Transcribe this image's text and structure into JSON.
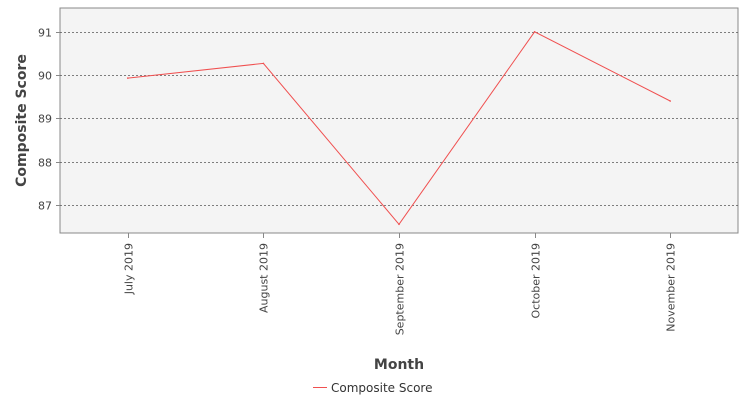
{
  "chart_data": {
    "type": "line",
    "title": "",
    "xlabel": "Month",
    "ylabel": "Composite Score",
    "categories": [
      "July 2019",
      "August 2019",
      "September 2019",
      "October 2019",
      "November 2019"
    ],
    "series": [
      {
        "name": "Composite Score",
        "values": [
          89.93,
          90.27,
          86.55,
          91.0,
          89.4
        ],
        "color": "#f05050"
      }
    ],
    "ylim": [
      86.35,
      91.55
    ],
    "yticks": [
      87,
      88,
      89,
      90,
      91
    ],
    "grid": true,
    "legend_position": "bottom-center",
    "plot_background": "#f4f4f4",
    "gridline_color": "#555555"
  }
}
